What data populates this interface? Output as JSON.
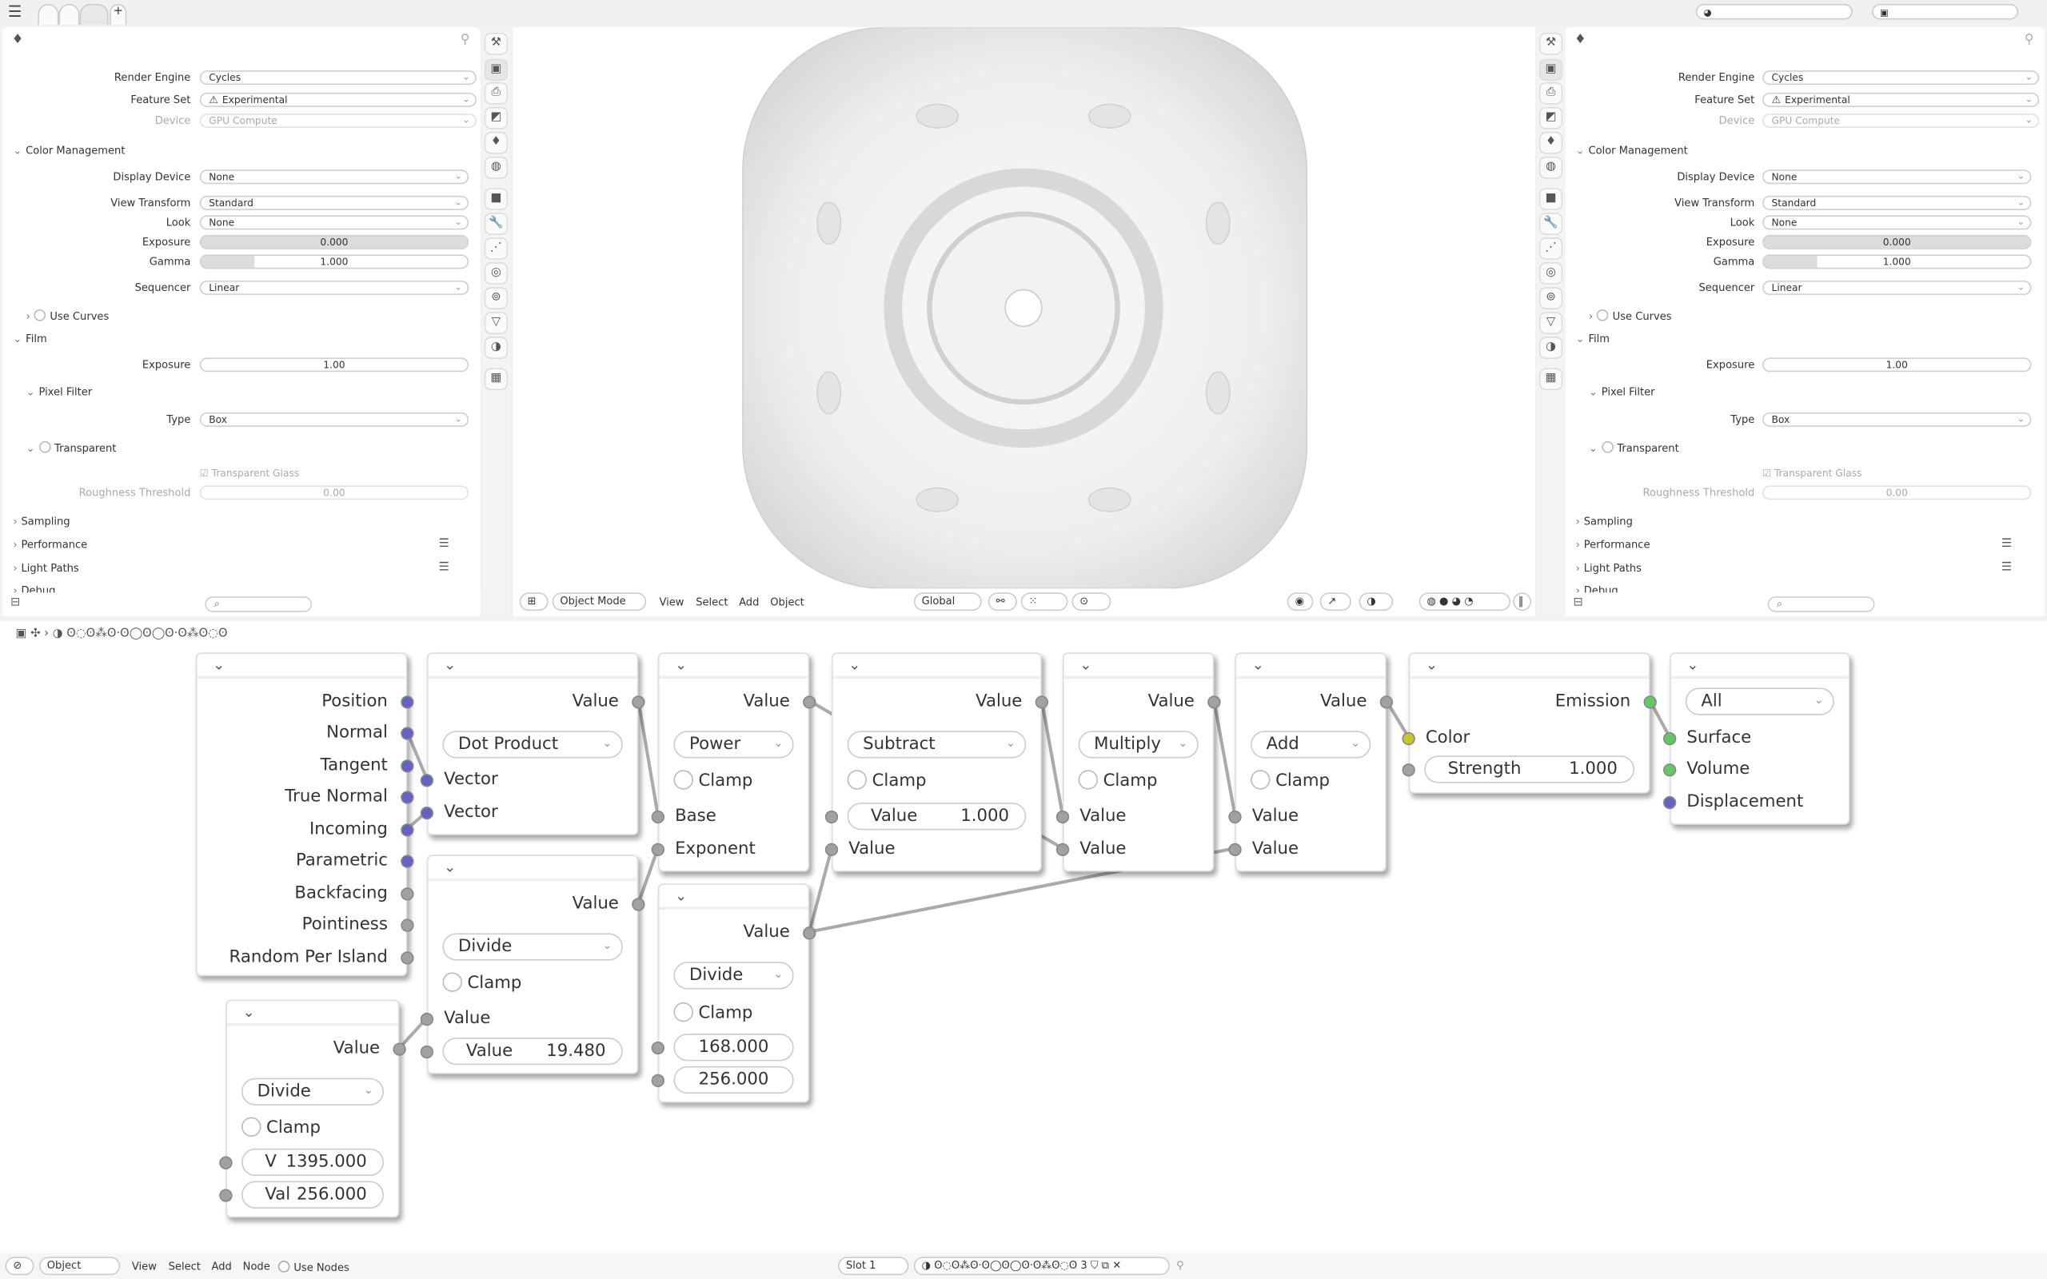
{
  "colors": {
    "vector_socket": "#6363c7",
    "float_socket": "#a1a1a1",
    "color_socket": "#c7c729",
    "shader_socket": "#63c763",
    "accent": "#6363c7"
  },
  "topbar": {
    "menu_icon": "hamburger-icon",
    "new_tab": "+",
    "workspace_tabs": [
      "",
      "",
      ""
    ]
  },
  "properties": {
    "editor_icon": "render-properties-icon",
    "rows": [
      {
        "type": "select",
        "label": "Render Engine",
        "value": "Cycles"
      },
      {
        "type": "select",
        "label": "Feature Set",
        "value": "Experimental",
        "icon": "warning-icon"
      },
      {
        "type": "select",
        "label": "Device",
        "value": "GPU Compute",
        "disabled": true
      },
      {
        "type": "header",
        "label": "Color Management",
        "open": true
      },
      {
        "type": "select",
        "label": "Display Device",
        "value": "None"
      },
      {
        "type": "select",
        "label": "View Transform",
        "value": "Standard"
      },
      {
        "type": "select",
        "label": "Look",
        "value": "None"
      },
      {
        "type": "slider",
        "label": "Exposure",
        "value": "0.000",
        "fill": 0
      },
      {
        "type": "slider",
        "label": "Gamma",
        "value": "1.000",
        "fill": 0.2
      },
      {
        "type": "select",
        "label": "Sequencer",
        "value": "Linear"
      },
      {
        "type": "subheader",
        "label": "Use Curves",
        "open": false,
        "checkbox": true
      },
      {
        "type": "header",
        "label": "Film",
        "open": true
      },
      {
        "type": "number",
        "label": "Exposure",
        "value": "1.00"
      },
      {
        "type": "subheader",
        "label": "Pixel Filter",
        "open": true
      },
      {
        "type": "select",
        "label": "Type",
        "value": "Box"
      },
      {
        "type": "subheader",
        "label": "Transparent",
        "open": true,
        "checkbox": true
      },
      {
        "type": "check",
        "label": "Transparent Glass",
        "checked": true,
        "disabled": true
      },
      {
        "type": "number",
        "label": "Roughness Threshold",
        "value": "0.00",
        "disabled": true
      },
      {
        "type": "header",
        "label": "Sampling",
        "open": false
      },
      {
        "type": "header",
        "label": "Performance",
        "open": false,
        "list": true
      },
      {
        "type": "header",
        "label": "Light Paths",
        "open": false,
        "list": true
      },
      {
        "type": "header",
        "label": "Debug",
        "open": false
      }
    ],
    "search_placeholder": ""
  },
  "viewport_header": {
    "mode": "Object Mode",
    "menus": [
      "View",
      "Select",
      "Add",
      "Object"
    ],
    "orientation": "Global"
  },
  "node_editor": {
    "breadcrumb": "ʘ◌ʘ⁂ʘ·ʘ◯ʘ◯ʘ·ʘ⁂ʘ◌ʘ",
    "nodes": [
      {
        "id": "geometry",
        "rows": [
          {
            "out": "Position",
            "sock": "vector"
          },
          {
            "out": "Normal",
            "sock": "vector"
          },
          {
            "out": "Tangent",
            "sock": "vector"
          },
          {
            "out": "True Normal",
            "sock": "vector"
          },
          {
            "out": "Incoming",
            "sock": "vector"
          },
          {
            "out": "Parametric",
            "sock": "vector"
          },
          {
            "out": "Backfacing",
            "sock": "float"
          },
          {
            "out": "Pointiness",
            "sock": "float"
          },
          {
            "out": "Random Per Island",
            "sock": "float"
          }
        ]
      },
      {
        "id": "dot",
        "rows": [
          {
            "out": "Value"
          },
          {
            "select": "Dot Product"
          },
          {
            "in": "Vector",
            "sock": "vector"
          },
          {
            "in": "Vector",
            "sock": "vector"
          }
        ]
      },
      {
        "id": "div1",
        "rows": [
          {
            "out": "Value"
          },
          {
            "select": "Divide"
          },
          {
            "check": "Clamp"
          },
          {
            "in": "Value"
          },
          {
            "field": "Value",
            "value": "19.480"
          }
        ]
      },
      {
        "id": "div2",
        "rows": [
          {
            "out": "Value"
          },
          {
            "select": "Divide"
          },
          {
            "check": "Clamp"
          },
          {
            "field": "V",
            "value": "1395.000"
          },
          {
            "field": "Val",
            "value": "256.000"
          }
        ]
      },
      {
        "id": "power",
        "rows": [
          {
            "out": "Value"
          },
          {
            "select": "Power"
          },
          {
            "check": "Clamp"
          },
          {
            "in": "Base"
          },
          {
            "in": "Exponent"
          }
        ]
      },
      {
        "id": "div3",
        "rows": [
          {
            "out": "Value"
          },
          {
            "select": "Divide"
          },
          {
            "check": "Clamp"
          },
          {
            "field": "",
            "value": "168.000"
          },
          {
            "field": "",
            "value": "256.000"
          }
        ]
      },
      {
        "id": "sub",
        "rows": [
          {
            "out": "Value"
          },
          {
            "select": "Subtract"
          },
          {
            "check": "Clamp"
          },
          {
            "field": "Value",
            "value": "1.000"
          },
          {
            "in": "Value"
          }
        ]
      },
      {
        "id": "mul",
        "rows": [
          {
            "out": "Value"
          },
          {
            "select": "Multiply"
          },
          {
            "check": "Clamp"
          },
          {
            "in": "Value"
          },
          {
            "in": "Value"
          }
        ]
      },
      {
        "id": "add",
        "rows": [
          {
            "out": "Value"
          },
          {
            "select": "Add"
          },
          {
            "check": "Clamp"
          },
          {
            "in": "Value"
          },
          {
            "in": "Value"
          }
        ]
      },
      {
        "id": "emission",
        "rows": [
          {
            "out": "Emission",
            "sock": "shader"
          },
          {
            "in": "Color",
            "sock": "color"
          },
          {
            "field": "Strength",
            "value": "1.000"
          }
        ]
      },
      {
        "id": "output",
        "rows": [
          {
            "select": "All"
          },
          {
            "in": "Surface",
            "sock": "shader"
          },
          {
            "in": "Volume",
            "sock": "shader"
          },
          {
            "in": "Displacement",
            "sock": "vector"
          }
        ]
      }
    ]
  },
  "footer": {
    "mode": "Object",
    "menus": [
      "View",
      "Select",
      "Add",
      "Node"
    ],
    "use_nodes": "Use Nodes",
    "slot": "Slot 1",
    "material": "ʘ◌ʘ⁂ʘ·ʘ◯ʘ◯ʘ·ʘ⁂ʘ◌ʘ",
    "users": "3"
  }
}
